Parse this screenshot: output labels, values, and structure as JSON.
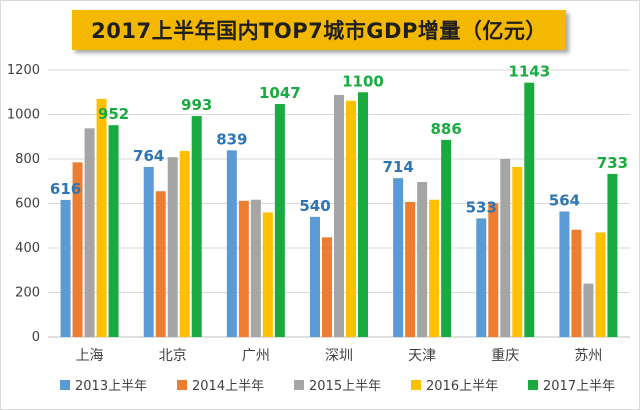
{
  "chart_data": {
    "type": "bar",
    "title": "2017上半年国内TOP7城市GDP增量（亿元）",
    "xlabel": "",
    "ylabel": "",
    "ylim": [
      0,
      1200
    ],
    "yticks": [
      0,
      200,
      400,
      600,
      800,
      1000,
      1200
    ],
    "grid": true,
    "legend_position": "bottom",
    "categories": [
      "上海",
      "北京",
      "广州",
      "深圳",
      "天津",
      "重庆",
      "苏州"
    ],
    "series": [
      {
        "name": "2013上半年",
        "color": "#5b9bd5",
        "values": [
          616,
          764,
          839,
          540,
          714,
          533,
          564
        ],
        "show_labels": true,
        "label_color": "#2e75b6"
      },
      {
        "name": "2014上半年",
        "color": "#ed7d31",
        "values": [
          785,
          655,
          612,
          448,
          607,
          600,
          482
        ],
        "show_labels": false
      },
      {
        "name": "2015上半年",
        "color": "#a5a5a5",
        "values": [
          938,
          808,
          617,
          1088,
          697,
          800,
          240
        ],
        "show_labels": false
      },
      {
        "name": "2016上半年",
        "color": "#ffc000",
        "values": [
          1070,
          836,
          560,
          1062,
          617,
          764,
          470
        ],
        "show_labels": false
      },
      {
        "name": "2017上半年",
        "color": "#1aab40",
        "values": [
          952,
          993,
          1047,
          1100,
          886,
          1143,
          733
        ],
        "show_labels": true,
        "label_color": "#1aab40"
      }
    ]
  }
}
